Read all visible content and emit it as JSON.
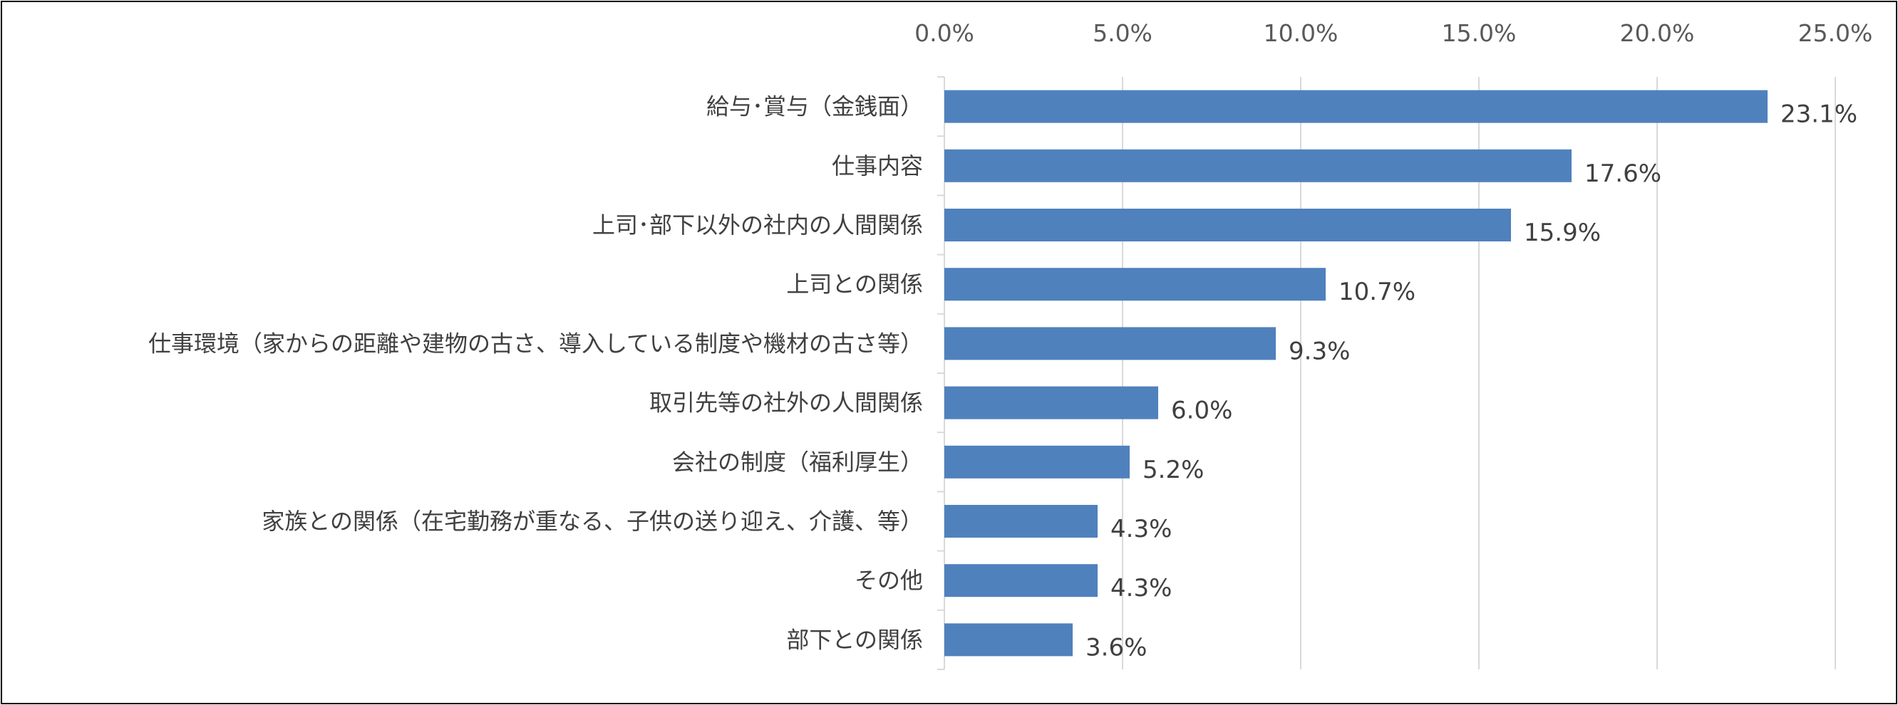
{
  "chart_data": {
    "type": "bar",
    "orientation": "horizontal",
    "title": "",
    "xlabel": "",
    "ylabel": "",
    "xlim": [
      0,
      25
    ],
    "x_ticks": [
      "0.0%",
      "5.0%",
      "10.0%",
      "15.0%",
      "20.0%",
      "25.0%"
    ],
    "x_tick_values": [
      0,
      5,
      10,
      15,
      20,
      25
    ],
    "axis_position": "top",
    "grid": true,
    "bar_color": "#4f81bd",
    "categories": [
      "給与･賞与（金銭面）",
      "仕事内容",
      "上司･部下以外の社内の人間関係",
      "上司との関係",
      "仕事環境（家からの距離や建物の古さ、導入している制度や機材の古さ等）",
      "取引先等の社外の人間関係",
      "会社の制度（福利厚生）",
      "家族との関係（在宅勤務が重なる、子供の送り迎え、介護、等）",
      "その他",
      "部下との関係"
    ],
    "values": [
      23.1,
      17.6,
      15.9,
      10.7,
      9.3,
      6.0,
      5.2,
      4.3,
      4.3,
      3.6
    ],
    "value_labels": [
      "23.1%",
      "17.6%",
      "15.9%",
      "10.7%",
      "9.3%",
      "6.0%",
      "5.2%",
      "4.3%",
      "4.3%",
      "3.6%"
    ]
  }
}
